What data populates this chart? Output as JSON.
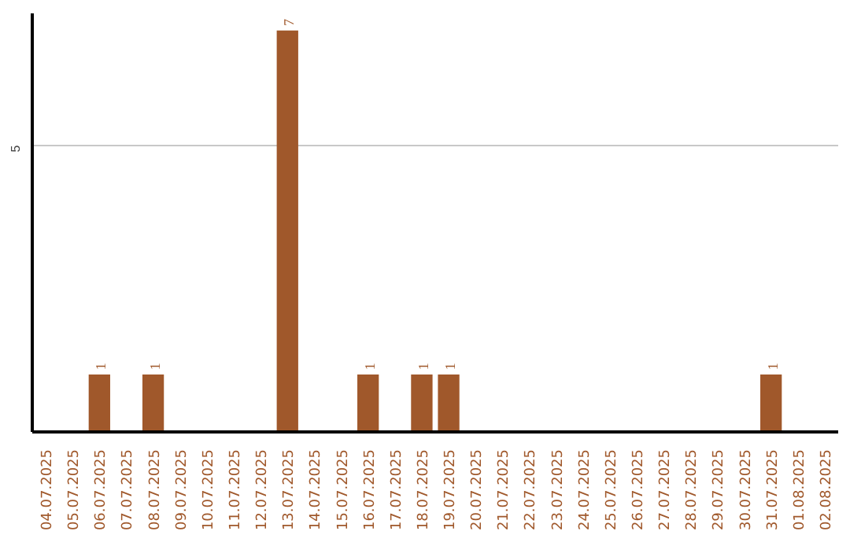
{
  "chart_data": {
    "type": "bar",
    "categories": [
      "04.07.2025",
      "05.07.2025",
      "06.07.2025",
      "07.07.2025",
      "08.07.2025",
      "09.07.2025",
      "10.07.2025",
      "11.07.2025",
      "12.07.2025",
      "13.07.2025",
      "14.07.2025",
      "15.07.2025",
      "16.07.2025",
      "17.07.2025",
      "18.07.2025",
      "19.07.2025",
      "20.07.2025",
      "21.07.2025",
      "22.07.2025",
      "23.07.2025",
      "24.07.2025",
      "25.07.2025",
      "26.07.2025",
      "27.07.2025",
      "28.07.2025",
      "29.07.2025",
      "30.07.2025",
      "31.07.2025",
      "01.08.2025",
      "02.08.2025"
    ],
    "values": [
      0,
      0,
      1,
      0,
      1,
      0,
      0,
      0,
      0,
      7,
      0,
      0,
      1,
      0,
      1,
      1,
      0,
      0,
      0,
      0,
      0,
      0,
      0,
      0,
      0,
      0,
      0,
      1,
      0,
      0
    ],
    "color": "#a0582b",
    "value_labels": [
      null,
      null,
      "1",
      null,
      "1",
      null,
      null,
      null,
      null,
      "7",
      null,
      null,
      "1",
      null,
      "1",
      "1",
      null,
      null,
      null,
      null,
      null,
      null,
      null,
      null,
      null,
      null,
      null,
      "1",
      null,
      null
    ],
    "ylim": [
      0,
      7.3
    ],
    "yticks": [
      5
    ],
    "grid": "y"
  }
}
